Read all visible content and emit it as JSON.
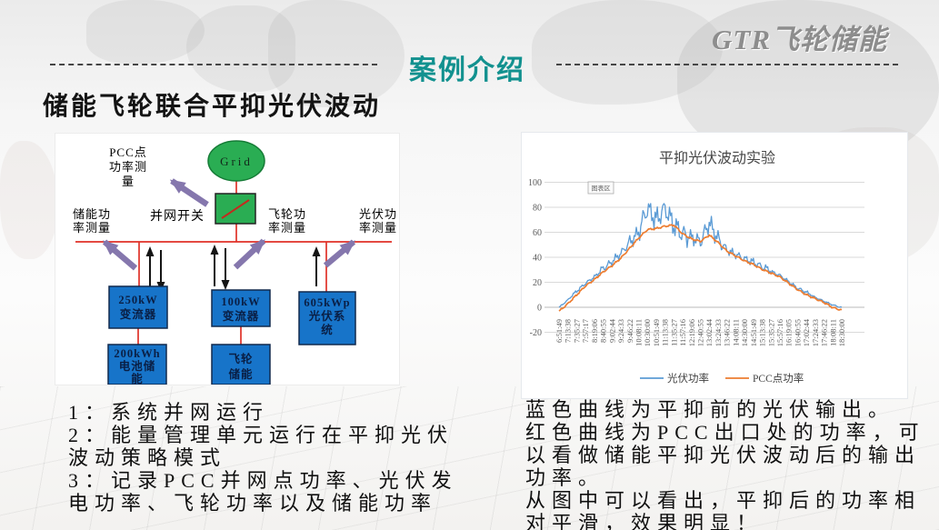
{
  "header": {
    "section_title": "案例介绍",
    "logo_text": "GTR飞轮储能"
  },
  "slide": {
    "title": "储能飞轮联合平抑光伏波动"
  },
  "diagram": {
    "grid_node": "Grid",
    "switch_label": "并网开关",
    "labels": {
      "pcc": [
        "PCC点",
        "功率测",
        "量"
      ],
      "storage": [
        "储能功",
        "率测量"
      ],
      "flywheel": [
        "飞轮功",
        "率测量"
      ],
      "pv": [
        "光伏功",
        "率测量"
      ]
    },
    "boxes": {
      "converter250": [
        "250kW",
        "变流器"
      ],
      "converter100": [
        "100kW",
        "变流器"
      ],
      "pv_system": [
        "605kWp",
        "光伏系",
        "统"
      ],
      "battery": [
        "200kWh",
        "电池储",
        "能"
      ],
      "flywheel": [
        "飞轮",
        "储能"
      ]
    }
  },
  "chart_data": {
    "type": "line",
    "title": "平抑光伏波动实验",
    "annotation": "图表区",
    "grid": true,
    "legend_position": "bottom",
    "ylim": [
      -20,
      100
    ],
    "yticks": [
      100,
      80,
      60,
      40,
      20,
      0,
      -20
    ],
    "categories": [
      "6:51:49",
      "7:13:38",
      "7:35:27",
      "7:57:17",
      "8:19:06",
      "8:40:55",
      "9:02:44",
      "9:24:33",
      "9:46:22",
      "10:08:11",
      "10:30:00",
      "10:51:49",
      "11:13:38",
      "11:35:27",
      "11:57:16",
      "12:19:06",
      "12:40:55",
      "13:02:44",
      "13:24:33",
      "13:46:22",
      "14:08:11",
      "14:30:00",
      "14:51:49",
      "15:13:38",
      "15:35:27",
      "15:57:16",
      "16:19:05",
      "16:40:55",
      "17:02:44",
      "17:24:33",
      "17:46:22",
      "18:08:11",
      "18:30:00"
    ],
    "series": [
      {
        "name": "光伏功率",
        "color": "#5b9bd5",
        "values": [
          0,
          6,
          13,
          19,
          24,
          30,
          35,
          42,
          50,
          58,
          78,
          70,
          81,
          68,
          62,
          58,
          55,
          70,
          56,
          46,
          42,
          38,
          35,
          31,
          28,
          25,
          20,
          15,
          12,
          8,
          5,
          2,
          0
        ]
      },
      {
        "name": "PCC点功率",
        "color": "#ed7d31",
        "values": [
          -3,
          3,
          10,
          17,
          22,
          28,
          33,
          39,
          47,
          55,
          62,
          63,
          65,
          66,
          59,
          55,
          53,
          58,
          52,
          45,
          41,
          37,
          34,
          30,
          27,
          24,
          19,
          14,
          10,
          7,
          4,
          0,
          -2
        ]
      }
    ]
  },
  "notes_left": {
    "items": [
      "1：系统并网运行",
      "2：能量管理单元运行在平抑光伏波动策略模式",
      "3：记录PCC并网点功率、光伏发电功率、飞轮功率以及储能功率"
    ]
  },
  "notes_right": {
    "items": [
      "蓝色曲线为平抑前的光伏输出。",
      "红色曲线为PCC出口处的功率，可以看做储能平抑光伏波动后的输出功率。",
      "从图中可以看出，平抑后的功率相对平滑，效果明显！"
    ]
  },
  "colors": {
    "accent_teal": "#12918f",
    "logo_gray": "#8d8d8d",
    "diagram_red": "#e03127",
    "diagram_green": "#2aad53",
    "diagram_blue": "#1774c9",
    "arrow_purple": "#8577ad",
    "line_blue": "#5b9bd5",
    "line_orange": "#ed7d31"
  }
}
